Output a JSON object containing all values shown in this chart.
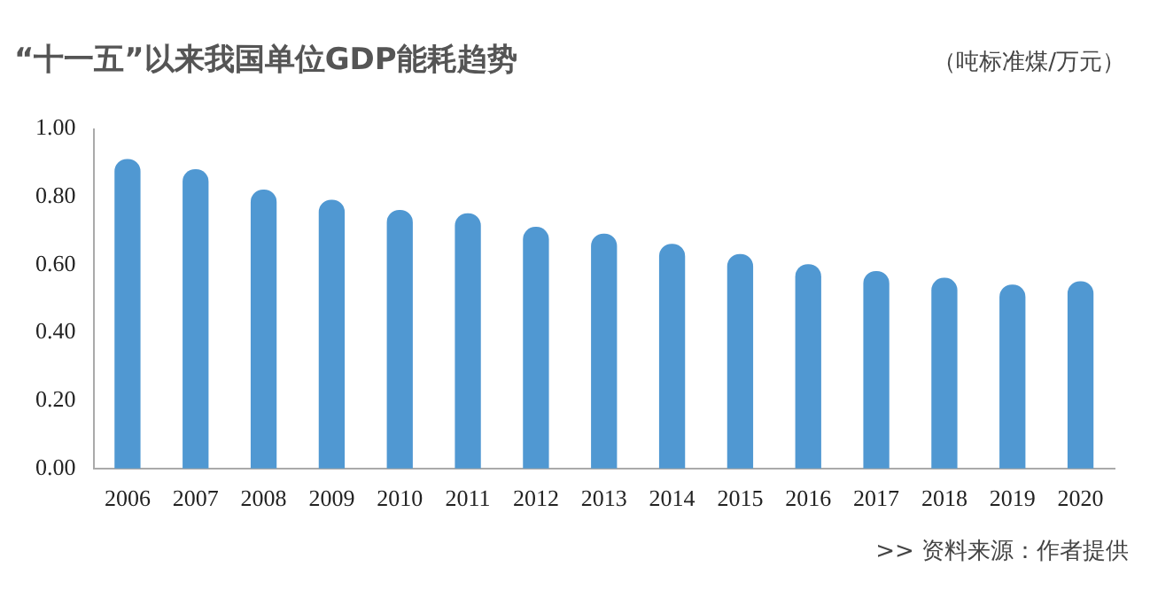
{
  "chart_data": {
    "type": "bar",
    "title": "“十一五”以来我国单位GDP能耗趋势",
    "ylabel": "（吨标准煤/万元）",
    "annotations": [
      ">> 资料来源：作者提供"
    ],
    "categories": [
      "2006",
      "2007",
      "2008",
      "2009",
      "2010",
      "2011",
      "2012",
      "2013",
      "2014",
      "2015",
      "2016",
      "2017",
      "2018",
      "2019",
      "2020"
    ],
    "values": [
      0.91,
      0.88,
      0.82,
      0.79,
      0.76,
      0.75,
      0.71,
      0.69,
      0.66,
      0.63,
      0.6,
      0.58,
      0.56,
      0.54,
      0.55
    ],
    "color": "#5098d2",
    "ylim": [
      0,
      1
    ],
    "yticks": [
      {
        "value": 0,
        "label": "0.00"
      },
      {
        "value": 0.2,
        "label": "0.20"
      },
      {
        "value": 0.4,
        "label": "0.40"
      },
      {
        "value": 0.6,
        "label": "0.60"
      },
      {
        "value": 0.8,
        "label": "0.80"
      },
      {
        "value": 1,
        "label": "1.00"
      }
    ],
    "grid": false,
    "legend": false
  }
}
